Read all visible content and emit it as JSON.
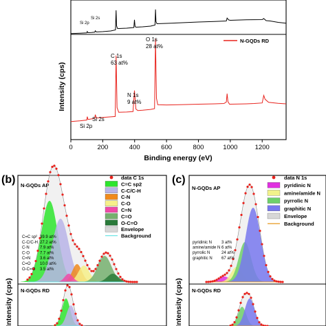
{
  "colors": {
    "rd_line": "#e8221c",
    "ap_line": "#000000",
    "data_marker": "#e8221c",
    "csp2": "#2ee52e",
    "cc_ch": "#b8b4e8",
    "cn": "#f08a1c",
    "co": "#f6f08a",
    "ceqn": "#f04aa8",
    "ceqo": "#76b06e",
    "oceqo": "#2a7a3a",
    "envelope": "#d7d7d7",
    "background": "#6fe6e6",
    "pyridinic": "#e030e0",
    "amine": "#f2f28a",
    "pyrrolic": "#6ed06a",
    "graphitic": "#7878ee",
    "n_background": "#e8a030"
  },
  "chart_data": [
    {
      "id": "a",
      "type": "line",
      "xlabel": "Binding energy (eV)",
      "ylabel": "Intensity (cps)",
      "xlim": [
        0,
        1350
      ],
      "xticks": [
        "0",
        "200",
        "400",
        "600",
        "800",
        "1000",
        "1200"
      ],
      "legend": [
        "N-GQDs RD"
      ],
      "series": [
        {
          "name": "N-GQDs AP",
          "x": [
            0,
            60,
            100,
            103,
            108,
            130,
            150,
            153,
            160,
            200,
            250,
            280,
            284,
            287,
            292,
            300,
            350,
            395,
            399,
            403,
            410,
            450,
            500,
            528,
            531,
            534,
            540,
            600,
            700,
            800,
            900,
            975,
            980,
            990,
            1000,
            1100,
            1200,
            1210,
            1225,
            1250,
            1300,
            1350
          ],
          "y": [
            0.05,
            0.07,
            0.09,
            0.17,
            0.1,
            0.11,
            0.13,
            0.21,
            0.14,
            0.16,
            0.2,
            0.26,
            1.4,
            0.5,
            0.35,
            0.34,
            0.36,
            0.4,
            0.85,
            0.45,
            0.42,
            0.44,
            0.48,
            0.55,
            1.45,
            0.75,
            0.62,
            0.64,
            0.68,
            0.72,
            0.75,
            0.78,
            0.95,
            0.84,
            0.82,
            0.85,
            0.86,
            0.92,
            0.8,
            0.78,
            0.7,
            0.65
          ]
        },
        {
          "name": "N-GQDs RD",
          "x": [
            0,
            60,
            100,
            103,
            108,
            130,
            150,
            153,
            160,
            200,
            250,
            278,
            284,
            290,
            300,
            350,
            390,
            399,
            408,
            420,
            450,
            500,
            525,
            531,
            537,
            545,
            600,
            700,
            800,
            900,
            960,
            975,
            980,
            985,
            995,
            1050,
            1100,
            1150,
            1200,
            1210,
            1218,
            1240,
            1300,
            1350
          ],
          "y": [
            0.05,
            0.09,
            0.13,
            0.31,
            0.16,
            0.19,
            0.22,
            0.42,
            0.24,
            0.27,
            0.3,
            0.32,
            3.6,
            0.8,
            0.55,
            0.56,
            0.58,
            1.72,
            0.72,
            0.64,
            0.66,
            0.7,
            0.74,
            4.5,
            1.3,
            0.95,
            0.94,
            0.96,
            0.98,
            1.0,
            1.02,
            1.1,
            1.55,
            1.12,
            0.98,
            0.99,
            1.0,
            1.02,
            1.05,
            1.45,
            1.25,
            1.08,
            1.03,
            1.0
          ]
        }
      ],
      "annotations_top": [
        "Si 2p",
        "Si 2s"
      ],
      "annotations": [
        {
          "label": "Si 2p",
          "x": 103
        },
        {
          "label": "Si 2s",
          "x": 153
        },
        {
          "label": "C 1s",
          "value": "63 at%",
          "x": 284
        },
        {
          "label": "N 1s",
          "value": "9 at%",
          "x": 399
        },
        {
          "label": "O 1s",
          "value": "28 at%",
          "x": 531
        }
      ]
    },
    {
      "id": "b",
      "panel_label": "(b)",
      "type": "area",
      "ylabel": "Intensity (cps)",
      "sample_labels": [
        "N-GQDs AP",
        "N-GQDs RD"
      ],
      "legend": [
        "data C 1s",
        "C=C sp2",
        "C-C/C-H",
        "C-N",
        "C-O",
        "C=N",
        "C=O",
        "O-C=O",
        "Envelope",
        "Background"
      ],
      "composition": [
        {
          "label": "C=C sp²",
          "value": "39.9 at%"
        },
        {
          "label": "C-C/C-H",
          "value": "27.2 at%"
        },
        {
          "label": "C-N",
          "value": "7.9 at%"
        },
        {
          "label": "C-O",
          "value": "7.7 at%"
        },
        {
          "label": "C=N",
          "value": "3.6 at%"
        },
        {
          "label": "C=O",
          "value": "10.0 at%"
        },
        {
          "label": "O-C=O",
          "value": "3.5 at%"
        }
      ]
    },
    {
      "id": "c",
      "panel_label": "(c)",
      "type": "area",
      "ylabel": "Intensity (cps)",
      "sample_labels": [
        "N-GQDs AP",
        "N-GQDs RD"
      ],
      "legend": [
        "data N 1s",
        "pyridinic N",
        "amine/amide N",
        "pyrrolic N",
        "graphitic N",
        "Envelope",
        "Background"
      ],
      "composition": [
        {
          "label": "pyridinic N",
          "value": "3 at%"
        },
        {
          "label": "amine/amide N",
          "value": "6 at%"
        },
        {
          "label": "pyrrolic N",
          "value": "24 at%"
        },
        {
          "label": "graphitic N",
          "value": "67 at%"
        }
      ]
    }
  ]
}
